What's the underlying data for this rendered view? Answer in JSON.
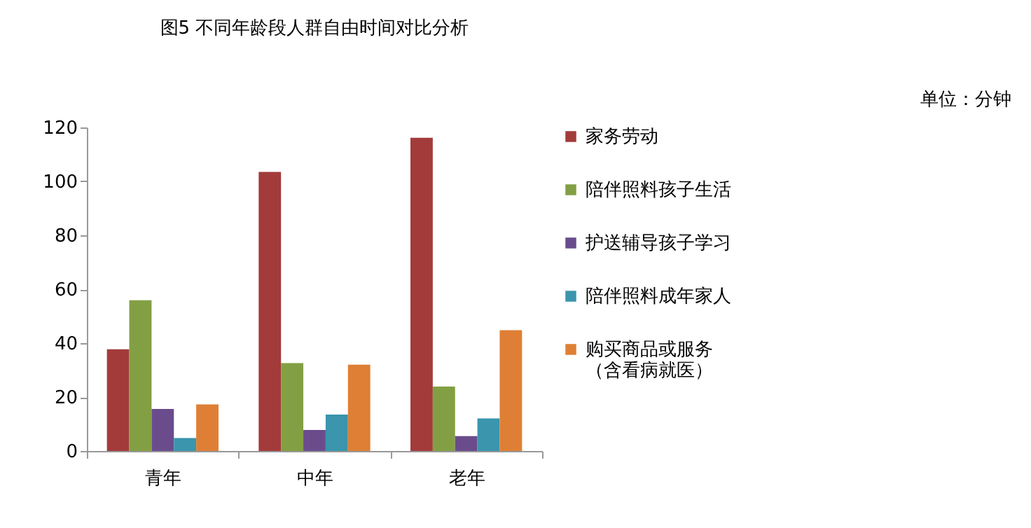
{
  "chart_data": {
    "type": "bar",
    "title": "图5 不同年龄段人群自由时间对比分析",
    "annotations": [
      "单位：分钟"
    ],
    "categories": [
      "青年",
      "中年",
      "老年"
    ],
    "series": [
      {
        "name": "家务劳动",
        "color": "#a33b3b",
        "values": [
          37.7,
          103.5,
          116.2
        ]
      },
      {
        "name": "陪伴照料孩子生活",
        "color": "#82a043",
        "values": [
          55.9,
          32.6,
          23.9
        ]
      },
      {
        "name": "护送辅导孩子学习",
        "color": "#6a4c8c",
        "values": [
          15.6,
          7.8,
          5.5
        ]
      },
      {
        "name": "陪伴照料成年家人",
        "color": "#3a95ad",
        "values": [
          4.8,
          13.5,
          12.1
        ]
      },
      {
        "name": "购买商品或服务（含看病就医）",
        "color": "#df7f35",
        "values": [
          17.3,
          32.0,
          44.8
        ]
      }
    ],
    "ylim": [
      0,
      120
    ],
    "yticks": [
      0,
      20,
      40,
      60,
      80,
      100,
      120
    ],
    "grid": false,
    "legend": "right"
  }
}
